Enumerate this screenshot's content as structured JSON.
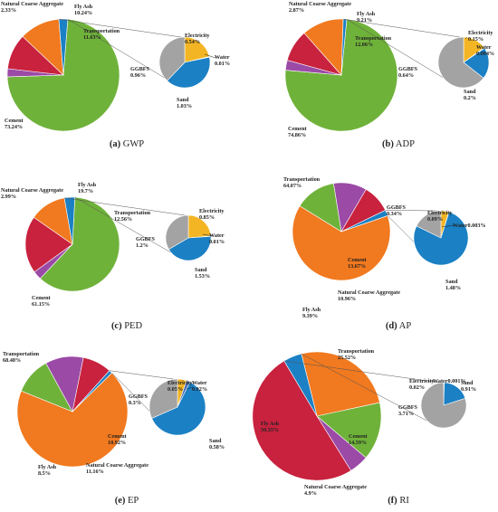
{
  "colors": {
    "Cement": "#6fb23a",
    "Natural Coarse Aggregate": "#9b4aa6",
    "Fly Ash": "#c8223e",
    "Transportation": "#f1791f",
    "GGBFS": "#a3a3a3",
    "Electricity": "#f3b524",
    "Water": "#4a6fb8",
    "Sand": "#1b80c4",
    "connector": "#555555"
  },
  "chart_data": [
    {
      "type": "pie",
      "title": "GWP",
      "caption_letter": "(a)",
      "primary": [
        {
          "name": "Cement",
          "label": "Cement",
          "value": 73.24,
          "value_label": "73.24%"
        },
        {
          "name": "Natural Coarse Aggregate",
          "label": "Natural Coarse Aggregate",
          "value": 2.33,
          "value_label": "2.33%"
        },
        {
          "name": "Fly Ash",
          "label": "Fly Ash",
          "value": 10.24,
          "value_label": "10.24%"
        },
        {
          "name": "Transportation",
          "label": "Transportation",
          "value": 11.63,
          "value_label": "11.63%"
        }
      ],
      "secondary": [
        {
          "name": "GGBFS",
          "label": "GGBFS",
          "value": 0.96,
          "value_label": "0.96%"
        },
        {
          "name": "Electricity",
          "label": "Electricity",
          "value": 0.54,
          "value_label": "0.54%"
        },
        {
          "name": "Water",
          "label": "Water",
          "value": 0.01,
          "value_label": "0.01%"
        },
        {
          "name": "Sand",
          "label": "Sand",
          "value": 1.03,
          "value_label": "1.03%"
        }
      ]
    },
    {
      "type": "pie",
      "title": "ADP",
      "caption_letter": "(b)",
      "primary": [
        {
          "name": "Cement",
          "label": "Cement",
          "value": 74.86,
          "value_label": "74.86%"
        },
        {
          "name": "Natural Coarse Aggregate",
          "label": "Natural Coarse Aggregate",
          "value": 2.87,
          "value_label": "2.87%"
        },
        {
          "name": "Fly Ash",
          "label": "Fly Ash",
          "value": 9.21,
          "value_label": "9.21%"
        },
        {
          "name": "Transportation",
          "label": "Transportation",
          "value": 12.06,
          "value_label": "12.06%"
        }
      ],
      "secondary": [
        {
          "name": "GGBFS",
          "label": "GGBFS",
          "value": 0.64,
          "value_label": "0.64%"
        },
        {
          "name": "Electricity",
          "label": "Electricity",
          "value": 0.15,
          "value_label": "0.15%"
        },
        {
          "name": "Water",
          "label": "Water",
          "value": 0.004,
          "value_label": "0.004%"
        },
        {
          "name": "Sand",
          "label": "Sand",
          "value": 0.2,
          "value_label": "0.2%"
        }
      ]
    },
    {
      "type": "pie",
      "title": "PED",
      "caption_letter": "(c)",
      "primary": [
        {
          "name": "Cement",
          "label": "Cement",
          "value": 61.15,
          "value_label": "61.15%"
        },
        {
          "name": "Natural Coarse Aggregate",
          "label": "Natural Coarse Aggregate",
          "value": 2.99,
          "value_label": "2.99%"
        },
        {
          "name": "Fly Ash",
          "label": "Fly Ash",
          "value": 19.7,
          "value_label": "19.7%"
        },
        {
          "name": "Transportation",
          "label": "Transportation",
          "value": 12.56,
          "value_label": "12.56%"
        }
      ],
      "secondary": [
        {
          "name": "GGBFS",
          "label": "GGBFS",
          "value": 1.2,
          "value_label": "1.2%"
        },
        {
          "name": "Electricity",
          "label": "Electricity",
          "value": 0.85,
          "value_label": "0.85%"
        },
        {
          "name": "Water",
          "label": "Water",
          "value": 0.01,
          "value_label": "0.01%"
        },
        {
          "name": "Sand",
          "label": "Sand",
          "value": 1.53,
          "value_label": "1.53%"
        }
      ]
    },
    {
      "type": "pie",
      "title": "AP",
      "caption_letter": "(d)",
      "primary": [
        {
          "name": "Transportation",
          "label": "Transportation",
          "value": 64.07,
          "value_label": "64.07%"
        },
        {
          "name": "Cement",
          "label": "Cement",
          "value": 13.67,
          "value_label": "13.67%"
        },
        {
          "name": "Natural Coarse Aggregate",
          "label": "Natural Coarse Aggregate",
          "value": 10.96,
          "value_label": "10.96%"
        },
        {
          "name": "Fly Ash",
          "label": "Fly Ash",
          "value": 9.39,
          "value_label": "9.39%"
        }
      ],
      "secondary": [
        {
          "name": "GGBFS",
          "label": "GGBFS",
          "value": 0.34,
          "value_label": "0.34%"
        },
        {
          "name": "Electricity",
          "label": "Electricity",
          "value": 0.09,
          "value_label": "0.09%"
        },
        {
          "name": "Water",
          "label": "Water",
          "value": 0.003,
          "value_label": "0.003%"
        },
        {
          "name": "Sand",
          "label": "Sand",
          "value": 1.48,
          "value_label": "1.48%"
        }
      ]
    },
    {
      "type": "pie",
      "title": "EP",
      "caption_letter": "(e)",
      "primary": [
        {
          "name": "Transportation",
          "label": "Transportation",
          "value": 68.48,
          "value_label": "68.48%"
        },
        {
          "name": "Cement",
          "label": "Cement",
          "value": 10.92,
          "value_label": "10.92%"
        },
        {
          "name": "Natural Coarse Aggregate",
          "label": "Natural Coarse Aggregate",
          "value": 11.16,
          "value_label": "11.16%"
        },
        {
          "name": "Fly Ash",
          "label": "Fly Ash",
          "value": 8.5,
          "value_label": "8.5%"
        }
      ],
      "secondary": [
        {
          "name": "GGBFS",
          "label": "GGBFS",
          "value": 0.3,
          "value_label": "0.3%"
        },
        {
          "name": "Electricity",
          "label": "Electricity",
          "value": 0.05,
          "value_label": "0.05%"
        },
        {
          "name": "Water",
          "label": "Water",
          "value": 0.02,
          "value_label": "0.02%"
        },
        {
          "name": "Sand",
          "label": "Sand",
          "value": 0.58,
          "value_label": "0.58%"
        }
      ]
    },
    {
      "type": "pie",
      "title": "RI",
      "caption_letter": "(f)",
      "primary": [
        {
          "name": "Transportation",
          "label": "Transportation",
          "value": 25.52,
          "value_label": "25.52%"
        },
        {
          "name": "Cement",
          "label": "Cement",
          "value": 14.59,
          "value_label": "14.59%"
        },
        {
          "name": "Natural Coarse Aggregate",
          "label": "Natural Coarse Aggregate",
          "value": 4.9,
          "value_label": "4.9%"
        },
        {
          "name": "Fly Ash",
          "label": "Fly Ash",
          "value": 50.35,
          "value_label": "50.35%"
        }
      ],
      "secondary": [
        {
          "name": "GGBFS",
          "label": "GGBFS",
          "value": 3.71,
          "value_label": "3.71%"
        },
        {
          "name": "Electricity",
          "label": "Electricity",
          "value": 0.02,
          "value_label": "0.02%"
        },
        {
          "name": "Water",
          "label": "Water",
          "value": 0.001,
          "value_label": "0.001%"
        },
        {
          "name": "Sand",
          "label": "Sand",
          "value": 0.91,
          "value_label": "0.91%"
        }
      ]
    }
  ]
}
